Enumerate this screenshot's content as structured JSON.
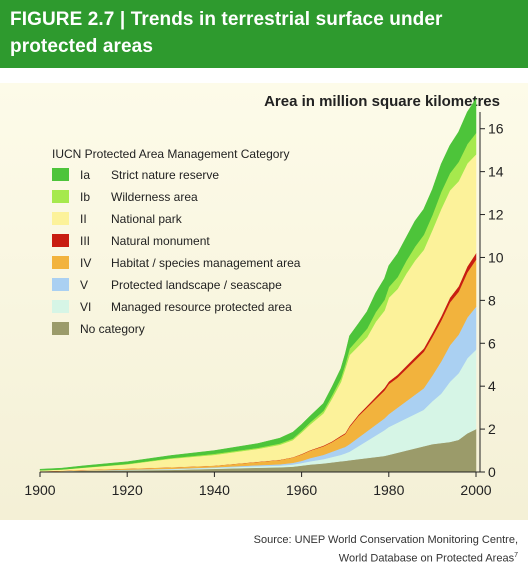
{
  "figure": {
    "label": "FIGURE 2.7",
    "separator": "|",
    "title": "Trends in terrestrial surface under protected areas"
  },
  "source": {
    "line1": "Source: UNEP World Conservation Monitoring Centre,",
    "line2": "World Database on Protected Areas",
    "footnote": "7"
  },
  "chart_data": {
    "type": "area",
    "stacked": true,
    "unit_label": "Area in million square kilometres",
    "xlim": [
      1900,
      2000
    ],
    "ylim": [
      0,
      16.5
    ],
    "xticks": [
      1900,
      1920,
      1940,
      1960,
      1980,
      2000
    ],
    "yticks": [
      0,
      2,
      4,
      6,
      8,
      10,
      12,
      14,
      16
    ],
    "y_axis_side": "right",
    "grid": false,
    "legend_title": "IUCN Protected Area Management Category",
    "legend_position": "top-left",
    "x": [
      1900,
      1905,
      1910,
      1920,
      1930,
      1940,
      1950,
      1955,
      1958,
      1960,
      1962,
      1965,
      1967,
      1969,
      1970,
      1971,
      1973,
      1975,
      1977,
      1979,
      1980,
      1982,
      1984,
      1986,
      1988,
      1990,
      1992,
      1994,
      1996,
      1998,
      2000
    ],
    "series": [
      {
        "code": "No category",
        "name": "No category",
        "color": "#9b9b6a",
        "values": [
          0.02,
          0.04,
          0.06,
          0.08,
          0.1,
          0.15,
          0.2,
          0.22,
          0.25,
          0.3,
          0.35,
          0.4,
          0.45,
          0.5,
          0.52,
          0.55,
          0.6,
          0.65,
          0.7,
          0.75,
          0.8,
          0.9,
          1.0,
          1.1,
          1.2,
          1.3,
          1.35,
          1.4,
          1.5,
          1.8,
          2.0
        ]
      },
      {
        "code": "VI",
        "name": "Managed resource protected area",
        "color": "#d6f5e6",
        "values": [
          0.0,
          0.0,
          0.01,
          0.02,
          0.03,
          0.05,
          0.07,
          0.08,
          0.1,
          0.12,
          0.15,
          0.2,
          0.25,
          0.3,
          0.35,
          0.4,
          0.6,
          0.8,
          1.0,
          1.2,
          1.3,
          1.4,
          1.5,
          1.6,
          1.7,
          2.0,
          2.3,
          2.8,
          3.1,
          3.5,
          3.7
        ]
      },
      {
        "code": "V",
        "name": "Protected landscape / seascape",
        "color": "#aad0f2",
        "values": [
          0.0,
          0.0,
          0.0,
          0.01,
          0.02,
          0.02,
          0.05,
          0.06,
          0.08,
          0.1,
          0.15,
          0.2,
          0.25,
          0.3,
          0.3,
          0.35,
          0.4,
          0.45,
          0.5,
          0.55,
          0.6,
          0.7,
          0.8,
          0.9,
          1.0,
          1.2,
          1.5,
          1.7,
          1.8,
          1.9,
          2.0
        ]
      },
      {
        "code": "IV",
        "name": "Habitat / species management area",
        "color": "#f2b33d",
        "values": [
          0.01,
          0.02,
          0.03,
          0.05,
          0.07,
          0.08,
          0.15,
          0.2,
          0.25,
          0.3,
          0.35,
          0.4,
          0.45,
          0.55,
          0.6,
          0.8,
          1.0,
          1.1,
          1.2,
          1.3,
          1.4,
          1.4,
          1.5,
          1.6,
          1.7,
          1.8,
          1.9,
          2.0,
          2.0,
          2.1,
          2.2
        ]
      },
      {
        "code": "III",
        "name": "Natural monument",
        "color": "#c81d11",
        "values": [
          0.0,
          0.0,
          0.0,
          0.0,
          0.0,
          0.0,
          0.01,
          0.01,
          0.01,
          0.02,
          0.02,
          0.03,
          0.03,
          0.04,
          0.04,
          0.05,
          0.06,
          0.08,
          0.1,
          0.12,
          0.12,
          0.13,
          0.14,
          0.15,
          0.15,
          0.18,
          0.2,
          0.22,
          0.25,
          0.28,
          0.3
        ]
      },
      {
        "code": "II",
        "name": "National park",
        "color": "#fcf29a",
        "values": [
          0.05,
          0.06,
          0.1,
          0.2,
          0.4,
          0.5,
          0.6,
          0.7,
          0.8,
          1.0,
          1.2,
          1.5,
          2.0,
          2.5,
          3.0,
          3.3,
          3.2,
          3.2,
          3.5,
          3.6,
          3.9,
          4.0,
          4.3,
          4.5,
          4.6,
          4.8,
          5.0,
          5.0,
          4.9,
          4.8,
          4.6
        ]
      },
      {
        "code": "Ib",
        "name": "Wilderness area",
        "color": "#a6e94d",
        "values": [
          0.0,
          0.0,
          0.01,
          0.02,
          0.03,
          0.05,
          0.05,
          0.06,
          0.07,
          0.08,
          0.1,
          0.12,
          0.15,
          0.18,
          0.2,
          0.3,
          0.35,
          0.4,
          0.45,
          0.5,
          0.5,
          0.55,
          0.6,
          0.65,
          0.7,
          0.7,
          0.8,
          0.8,
          0.9,
          0.9,
          1.0
        ]
      },
      {
        "code": "Ia",
        "name": "Strict nature reserve",
        "color": "#4dc43a",
        "values": [
          0.05,
          0.06,
          0.08,
          0.1,
          0.12,
          0.15,
          0.2,
          0.25,
          0.3,
          0.3,
          0.3,
          0.35,
          0.4,
          0.45,
          0.5,
          0.6,
          0.7,
          0.8,
          0.9,
          1.0,
          1.0,
          1.1,
          1.1,
          1.2,
          1.2,
          1.2,
          1.3,
          1.3,
          1.4,
          1.5,
          1.6
        ]
      }
    ]
  }
}
